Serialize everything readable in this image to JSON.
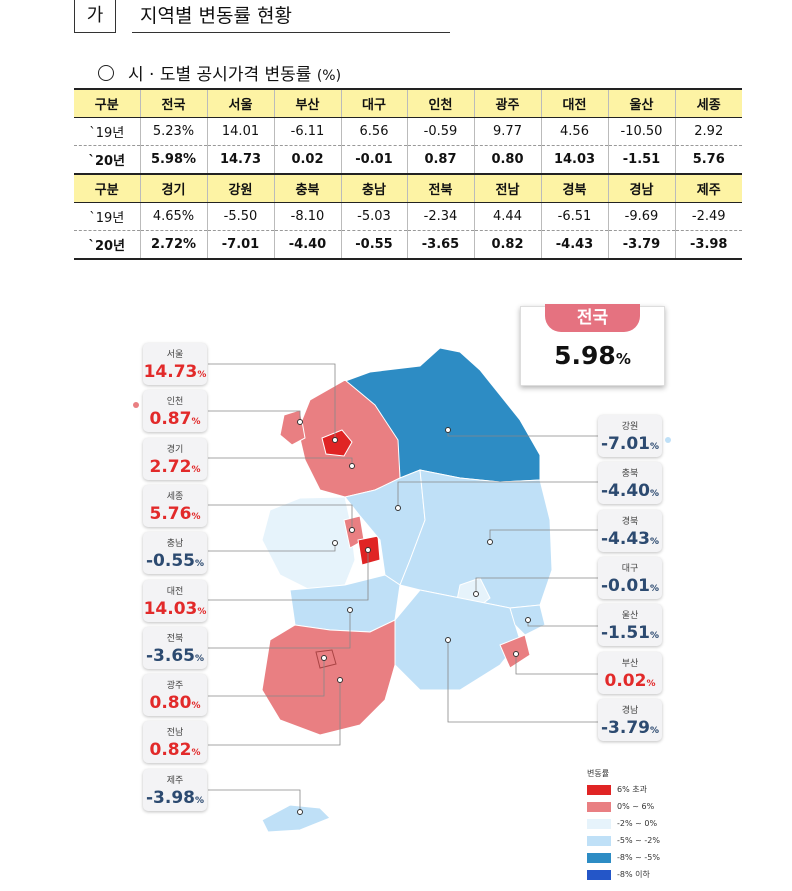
{
  "section": {
    "marker": "가",
    "title": "지역별 변동률 현황"
  },
  "subsection": {
    "title": "시 · 도별 공시가격 변동률",
    "unit": "(%)"
  },
  "table": [
    {
      "header": [
        "구분",
        "전국",
        "서울",
        "부산",
        "대구",
        "인천",
        "광주",
        "대전",
        "울산",
        "세종"
      ],
      "rows": [
        [
          "`19년",
          "5.23%",
          "14.01",
          "-6.11",
          "6.56",
          "-0.59",
          "9.77",
          "4.56",
          "-10.50",
          "2.92"
        ],
        [
          "`20년",
          "5.98%",
          "14.73",
          "0.02",
          "-0.01",
          "0.87",
          "0.80",
          "14.03",
          "-1.51",
          "5.76"
        ]
      ]
    },
    {
      "header": [
        "구분",
        "경기",
        "강원",
        "충북",
        "충남",
        "전북",
        "전남",
        "경북",
        "경남",
        "제주"
      ],
      "rows": [
        [
          "`19년",
          "4.65%",
          "-5.50",
          "-8.10",
          "-5.03",
          "-2.34",
          "4.44",
          "-6.51",
          "-9.69",
          "-2.49"
        ],
        [
          "`20년",
          "2.72%",
          "-7.01",
          "-4.40",
          "-0.55",
          "-3.65",
          "0.82",
          "-4.43",
          "-3.79",
          "-3.98"
        ]
      ]
    }
  ],
  "national": {
    "label": "전국",
    "value": "5.98",
    "unit": "%"
  },
  "regions_left": [
    {
      "name": "서울",
      "value": "14.73",
      "unit": "%"
    },
    {
      "name": "인천",
      "value": "0.87",
      "unit": "%"
    },
    {
      "name": "경기",
      "value": "2.72",
      "unit": "%"
    },
    {
      "name": "세종",
      "value": "5.76",
      "unit": "%"
    },
    {
      "name": "충남",
      "value": "-0.55",
      "unit": "%"
    },
    {
      "name": "대전",
      "value": "14.03",
      "unit": "%"
    },
    {
      "name": "전북",
      "value": "-3.65",
      "unit": "%"
    },
    {
      "name": "광주",
      "value": "0.80",
      "unit": "%"
    },
    {
      "name": "전남",
      "value": "0.82",
      "unit": "%"
    },
    {
      "name": "제주",
      "value": "-3.98",
      "unit": "%"
    }
  ],
  "regions_right": [
    {
      "name": "강원",
      "value": "-7.01",
      "unit": "%"
    },
    {
      "name": "충북",
      "value": "-4.40",
      "unit": "%"
    },
    {
      "name": "경북",
      "value": "-4.43",
      "unit": "%"
    },
    {
      "name": "대구",
      "value": "-0.01",
      "unit": "%"
    },
    {
      "name": "울산",
      "value": "-1.51",
      "unit": "%"
    },
    {
      "name": "부산",
      "value": "0.02",
      "unit": "%"
    },
    {
      "name": "경남",
      "value": "-3.79",
      "unit": "%"
    }
  ],
  "legend": {
    "title": "변동률",
    "items": [
      {
        "label": "6% 초과",
        "color": "#e02424"
      },
      {
        "label": "0% ~ 6%",
        "color": "#e97f82"
      },
      {
        "label": "-2% ~ 0%",
        "color": "#e6f3fb"
      },
      {
        "label": "-5% ~ -2%",
        "color": "#bfe0f7"
      },
      {
        "label": "-8% ~ -5%",
        "color": "#2d8cc4"
      },
      {
        "label": "-8% 이하",
        "color": "#2456c8"
      }
    ]
  }
}
